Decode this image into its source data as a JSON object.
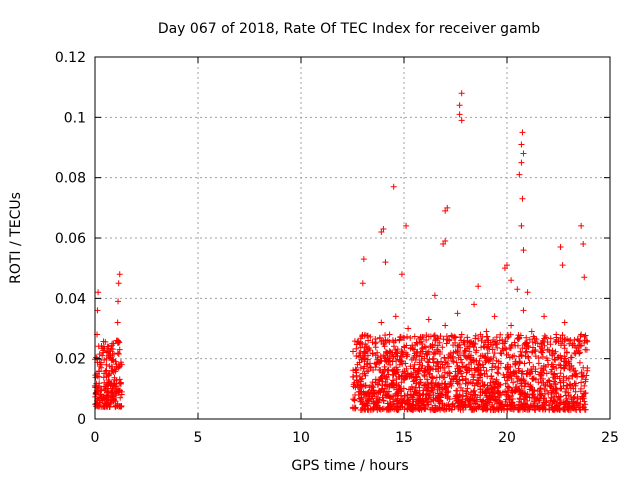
{
  "chart_data": {
    "type": "scatter",
    "title": "Day 067 of 2018, Rate Of TEC Index for receiver gamb",
    "xlabel": "GPS time / hours",
    "ylabel": "ROTI / TECUs",
    "xlim": [
      0,
      25
    ],
    "ylim": [
      0,
      0.12
    ],
    "x_ticks": [
      0,
      5,
      10,
      15,
      20,
      25
    ],
    "x_tick_labels": [
      "0",
      "5",
      "10",
      "15",
      "20",
      "25"
    ],
    "y_ticks": [
      0,
      0.02,
      0.04,
      0.06,
      0.08,
      0.1,
      0.12
    ],
    "y_tick_labels": [
      "0",
      "0.02",
      "0.04",
      "0.06",
      "0.08",
      "0.1",
      "0.12"
    ],
    "grid": true,
    "marker": "+",
    "color": "#ff0000",
    "series": [
      {
        "name": "ROTI",
        "x": [
          0.0,
          0.1,
          0.1,
          0.12,
          0.15,
          0.2,
          0.25,
          0.3,
          0.35,
          0.4,
          0.45,
          0.5,
          0.55,
          0.6,
          0.65,
          0.7,
          0.75,
          0.8,
          0.85,
          0.9,
          0.95,
          1.0,
          1.05,
          1.1,
          1.15,
          1.2,
          1.25,
          1.3,
          1.1,
          1.12,
          1.15,
          1.2,
          0.05,
          0.1,
          0.3,
          0.6,
          0.9,
          12.6,
          12.8,
          13.0,
          13.1,
          13.2,
          13.4,
          13.6,
          13.8,
          13.9,
          14.0,
          14.1,
          14.2,
          14.3,
          14.5,
          14.6,
          14.8,
          15.0,
          15.1,
          15.2,
          15.4,
          15.6,
          15.8,
          16.0,
          16.2,
          16.4,
          16.6,
          16.8,
          17.0,
          17.1,
          17.2,
          17.3,
          17.4,
          17.6,
          17.7,
          17.8,
          18.0,
          18.2,
          18.4,
          18.6,
          18.8,
          19.0,
          19.2,
          19.4,
          19.6,
          19.8,
          20.0,
          20.2,
          20.4,
          20.6,
          20.7,
          20.8,
          20.9,
          21.0,
          21.2,
          21.4,
          21.6,
          21.8,
          22.0,
          22.2,
          22.4,
          22.6,
          22.8,
          23.0,
          23.2,
          23.4,
          23.6,
          23.7,
          23.8,
          13.05,
          13.0,
          13.9,
          14.0,
          14.1,
          14.5,
          15.1,
          14.9,
          16.5,
          16.9,
          17.0,
          17.1,
          17.0,
          17.7,
          17.8,
          17.7,
          17.8,
          20.6,
          20.7,
          20.75,
          20.8,
          20.7,
          20.75,
          20.7,
          20.8,
          19.9,
          20.0,
          20.2,
          22.6,
          22.7,
          23.6,
          23.7,
          23.75,
          21.0,
          20.5,
          18.6
        ],
        "y": [
          0.011,
          0.02,
          0.028,
          0.036,
          0.042,
          0.014,
          0.008,
          0.017,
          0.006,
          0.022,
          0.012,
          0.01,
          0.018,
          0.024,
          0.007,
          0.015,
          0.021,
          0.009,
          0.016,
          0.025,
          0.013,
          0.019,
          0.026,
          0.005,
          0.017,
          0.023,
          0.012,
          0.009,
          0.032,
          0.039,
          0.045,
          0.048,
          0.005,
          0.006,
          0.004,
          0.005,
          0.006,
          0.012,
          0.008,
          0.015,
          0.022,
          0.018,
          0.011,
          0.025,
          0.013,
          0.032,
          0.009,
          0.02,
          0.016,
          0.028,
          0.012,
          0.034,
          0.018,
          0.024,
          0.014,
          0.03,
          0.01,
          0.021,
          0.027,
          0.016,
          0.033,
          0.012,
          0.023,
          0.019,
          0.031,
          0.015,
          0.026,
          0.011,
          0.022,
          0.035,
          0.017,
          0.028,
          0.013,
          0.024,
          0.038,
          0.016,
          0.021,
          0.029,
          0.012,
          0.034,
          0.019,
          0.025,
          0.014,
          0.031,
          0.018,
          0.027,
          0.011,
          0.036,
          0.022,
          0.016,
          0.029,
          0.013,
          0.024,
          0.034,
          0.018,
          0.021,
          0.027,
          0.012,
          0.032,
          0.019,
          0.025,
          0.014,
          0.028,
          0.017,
          0.023,
          0.053,
          0.045,
          0.062,
          0.063,
          0.052,
          0.077,
          0.064,
          0.048,
          0.041,
          0.058,
          0.069,
          0.07,
          0.059,
          0.101,
          0.108,
          0.104,
          0.099,
          0.081,
          0.091,
          0.095,
          0.088,
          0.085,
          0.073,
          0.064,
          0.056,
          0.05,
          0.051,
          0.046,
          0.057,
          0.051,
          0.064,
          0.058,
          0.047,
          0.042,
          0.043,
          0.044
        ]
      }
    ],
    "dense_clusters": [
      {
        "x_range": [
          0.0,
          1.3
        ],
        "y_range": [
          0.004,
          0.026
        ]
      },
      {
        "x_range": [
          12.5,
          23.9
        ],
        "y_range": [
          0.003,
          0.028
        ]
      }
    ]
  }
}
